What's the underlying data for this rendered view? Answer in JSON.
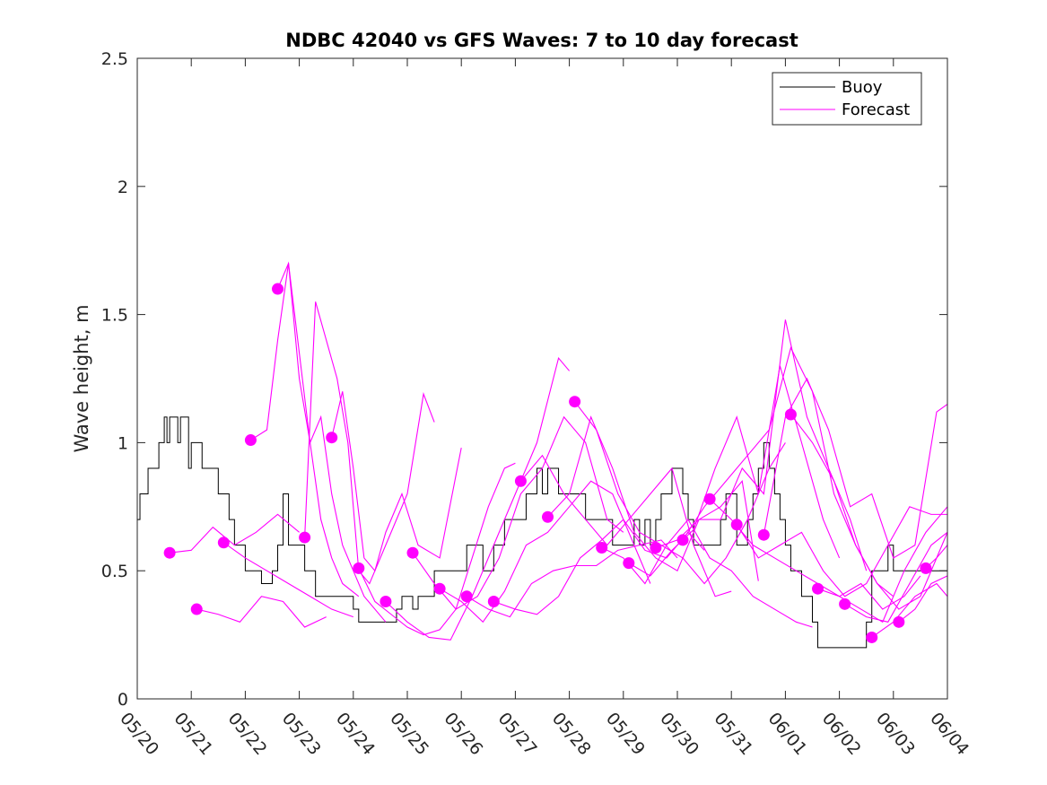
{
  "chart_data": {
    "type": "line",
    "title": "NDBC 42040 vs GFS Waves: 7 to 10 day forecast",
    "xlabel": "",
    "ylabel": "Wave height, m",
    "xlim": [
      0,
      15
    ],
    "ylim": [
      0,
      2.5
    ],
    "x_tick_labels": [
      "05/20",
      "05/21",
      "05/22",
      "05/23",
      "05/24",
      "05/25",
      "05/26",
      "05/27",
      "05/28",
      "05/29",
      "05/30",
      "05/31",
      "06/01",
      "06/02",
      "06/03",
      "06/04"
    ],
    "y_ticks": [
      0,
      0.5,
      1,
      1.5,
      2,
      2.5
    ],
    "y_tick_labels": [
      "0",
      "0.5",
      "1",
      "1.5",
      "2",
      "2.5"
    ],
    "legend": {
      "placement": "top-right",
      "entries": [
        {
          "label": "Buoy",
          "color": "#000000"
        },
        {
          "label": "Forecast",
          "color": "#ff00ff"
        }
      ]
    },
    "colors": {
      "buoy": "#000000",
      "forecast": "#ff00ff"
    },
    "series": [
      {
        "name": "Buoy",
        "x": [
          0,
          0.05,
          0.1,
          0.2,
          0.3,
          0.4,
          0.5,
          0.55,
          0.6,
          0.7,
          0.75,
          0.8,
          0.9,
          0.95,
          1.0,
          1.05,
          1.1,
          1.2,
          1.3,
          1.4,
          1.5,
          1.6,
          1.7,
          1.75,
          1.8,
          1.85,
          1.9,
          1.95,
          2.0,
          2.1,
          2.2,
          2.3,
          2.4,
          2.5,
          2.6,
          2.7,
          2.8,
          2.9,
          3.0,
          3.1,
          3.15,
          3.2,
          3.3,
          3.4,
          3.5,
          3.6,
          3.7,
          3.8,
          3.9,
          4.0,
          4.1,
          4.2,
          4.3,
          4.4,
          4.5,
          4.6,
          4.7,
          4.8,
          4.9,
          5.0,
          5.1,
          5.2,
          5.3,
          5.4,
          5.5,
          5.6,
          5.7,
          5.8,
          5.9,
          6.0,
          6.1,
          6.2,
          6.3,
          6.4,
          6.5,
          6.6,
          6.7,
          6.8,
          6.9,
          7.0,
          7.1,
          7.2,
          7.3,
          7.4,
          7.5,
          7.6,
          7.7,
          7.8,
          7.9,
          8.0,
          8.1,
          8.2,
          8.3,
          8.4,
          8.5,
          8.6,
          8.7,
          8.8,
          8.9,
          9.0,
          9.1,
          9.2,
          9.3,
          9.4,
          9.5,
          9.6,
          9.7,
          9.8,
          9.9,
          10.0,
          10.1,
          10.2,
          10.3,
          10.4,
          10.5,
          10.6,
          10.7,
          10.8,
          10.9,
          11.0,
          11.1,
          11.2,
          11.3,
          11.4,
          11.5,
          11.6,
          11.7,
          11.8,
          11.9,
          12.0,
          12.1,
          12.2,
          12.3,
          12.4,
          12.5,
          12.6,
          12.7,
          12.8,
          12.9,
          13.0,
          13.1,
          13.2,
          13.3,
          13.4,
          13.5,
          13.6,
          13.7,
          13.8,
          13.9,
          14.0,
          14.1,
          14.2,
          14.3,
          14.4,
          14.5,
          14.6,
          14.7,
          14.8,
          14.9,
          15.0
        ],
        "values": [
          0.7,
          0.8,
          0.8,
          0.9,
          0.9,
          1.0,
          1.1,
          1.0,
          1.1,
          1.1,
          1.0,
          1.1,
          1.1,
          0.9,
          1.0,
          1.0,
          1.0,
          0.9,
          0.9,
          0.9,
          0.8,
          0.8,
          0.7,
          0.7,
          0.6,
          0.6,
          0.6,
          0.6,
          0.5,
          0.5,
          0.5,
          0.45,
          0.45,
          0.5,
          0.6,
          0.8,
          0.6,
          0.6,
          0.6,
          0.5,
          0.5,
          0.5,
          0.4,
          0.4,
          0.4,
          0.4,
          0.4,
          0.4,
          0.4,
          0.35,
          0.3,
          0.3,
          0.3,
          0.3,
          0.3,
          0.3,
          0.3,
          0.35,
          0.4,
          0.4,
          0.35,
          0.4,
          0.4,
          0.4,
          0.5,
          0.5,
          0.5,
          0.5,
          0.5,
          0.5,
          0.6,
          0.6,
          0.6,
          0.5,
          0.5,
          0.6,
          0.6,
          0.7,
          0.7,
          0.7,
          0.7,
          0.8,
          0.8,
          0.9,
          0.8,
          0.9,
          0.9,
          0.8,
          0.8,
          0.8,
          0.8,
          0.8,
          0.7,
          0.7,
          0.7,
          0.7,
          0.7,
          0.6,
          0.6,
          0.6,
          0.6,
          0.7,
          0.6,
          0.7,
          0.6,
          0.7,
          0.8,
          0.8,
          0.9,
          0.9,
          0.8,
          0.7,
          0.6,
          0.6,
          0.6,
          0.6,
          0.6,
          0.7,
          0.8,
          0.8,
          0.6,
          0.6,
          0.7,
          0.8,
          0.9,
          1.0,
          0.9,
          0.8,
          0.7,
          0.6,
          0.5,
          0.5,
          0.4,
          0.4,
          0.3,
          0.2,
          0.2,
          0.2,
          0.2,
          0.2,
          0.2,
          0.2,
          0.2,
          0.2,
          0.3,
          0.5,
          0.5,
          0.5,
          0.6,
          0.5,
          0.5,
          0.5,
          0.5,
          0.5,
          0.5,
          0.5,
          0.5,
          0.5,
          0.5,
          0.5
        ]
      },
      {
        "name": "Forecast",
        "x": [
          0.6,
          1.0,
          1.4,
          1.8,
          2.2,
          2.6,
          3.0
        ],
        "values": [
          0.57,
          0.58,
          0.67,
          0.6,
          0.65,
          0.72,
          0.65
        ]
      },
      {
        "name": "Forecast",
        "x": [
          1.1,
          1.5,
          1.9,
          2.3,
          2.7,
          3.1,
          3.5
        ],
        "values": [
          0.35,
          0.33,
          0.3,
          0.4,
          0.38,
          0.28,
          0.32
        ]
      },
      {
        "name": "Forecast",
        "x": [
          1.6,
          2.0,
          2.4,
          2.8,
          3.2,
          3.6,
          4.0
        ],
        "values": [
          0.61,
          0.55,
          0.5,
          0.45,
          0.4,
          0.35,
          0.32
        ]
      },
      {
        "name": "Forecast",
        "x": [
          2.1,
          2.4,
          2.6,
          2.8,
          3.0,
          3.2,
          3.4,
          3.6,
          3.8,
          4.1
        ],
        "values": [
          1.01,
          1.05,
          1.4,
          1.7,
          1.25,
          1.0,
          0.7,
          0.55,
          0.45,
          0.4
        ]
      },
      {
        "name": "Forecast",
        "x": [
          2.6,
          2.8,
          3.0,
          3.2,
          3.4,
          3.6,
          3.8,
          4.0,
          4.2,
          4.6
        ],
        "values": [
          1.6,
          1.7,
          1.35,
          1.0,
          1.1,
          0.8,
          0.6,
          0.5,
          0.4,
          0.3
        ]
      },
      {
        "name": "Forecast",
        "x": [
          3.1,
          3.3,
          3.5,
          3.7,
          3.9,
          4.1,
          4.3,
          4.6,
          5.0,
          5.3,
          5.5
        ],
        "values": [
          0.63,
          1.55,
          1.4,
          1.25,
          1.0,
          0.5,
          0.45,
          0.6,
          0.8,
          1.19,
          1.08
        ]
      },
      {
        "name": "Forecast",
        "x": [
          3.6,
          3.8,
          4.0,
          4.2,
          4.4,
          4.6,
          4.9,
          5.2,
          5.6,
          6.0
        ],
        "values": [
          1.02,
          1.2,
          0.9,
          0.55,
          0.5,
          0.65,
          0.8,
          0.6,
          0.55,
          0.98
        ]
      },
      {
        "name": "Forecast",
        "x": [
          4.1,
          4.4,
          4.7,
          5.0,
          5.3,
          5.6,
          5.9,
          6.2,
          6.5,
          6.8,
          7.0
        ],
        "values": [
          0.51,
          0.38,
          0.33,
          0.28,
          0.25,
          0.27,
          0.35,
          0.55,
          0.75,
          0.9,
          0.92
        ]
      },
      {
        "name": "Forecast",
        "x": [
          4.6,
          5.0,
          5.4,
          5.8,
          6.2,
          6.6,
          7.0,
          7.4,
          7.8,
          8.0
        ],
        "values": [
          0.38,
          0.3,
          0.24,
          0.23,
          0.4,
          0.6,
          0.8,
          1.0,
          1.33,
          1.28
        ]
      },
      {
        "name": "Forecast",
        "x": [
          5.1,
          5.5,
          5.9,
          6.3,
          6.7,
          7.1,
          7.5,
          7.9,
          8.3,
          8.7,
          9.0
        ],
        "values": [
          0.57,
          0.45,
          0.35,
          0.4,
          0.55,
          0.8,
          0.9,
          1.1,
          1.0,
          0.7,
          0.65
        ]
      },
      {
        "name": "Forecast",
        "x": [
          5.6,
          6.0,
          6.4,
          6.8,
          7.2,
          7.6,
          8.0,
          8.4,
          8.8,
          9.2,
          9.5
        ],
        "values": [
          0.43,
          0.38,
          0.3,
          0.42,
          0.6,
          0.65,
          0.75,
          0.85,
          0.8,
          0.6,
          0.45
        ]
      },
      {
        "name": "Forecast",
        "x": [
          6.1,
          6.5,
          6.9,
          7.3,
          7.7,
          8.1,
          8.5,
          8.9,
          9.3,
          9.7,
          10.0
        ],
        "values": [
          0.4,
          0.35,
          0.32,
          0.45,
          0.5,
          0.52,
          0.52,
          0.58,
          0.6,
          0.62,
          0.55
        ]
      },
      {
        "name": "Forecast",
        "x": [
          6.6,
          7.0,
          7.4,
          7.8,
          8.2,
          8.6,
          9.0,
          9.4,
          9.8,
          10.2,
          10.5
        ],
        "values": [
          0.38,
          0.35,
          0.33,
          0.4,
          0.55,
          0.62,
          0.7,
          0.58,
          0.55,
          0.65,
          0.58
        ]
      },
      {
        "name": "Forecast",
        "x": [
          7.1,
          7.5,
          7.9,
          8.3,
          8.7,
          9.1,
          9.5,
          9.9,
          10.3,
          10.7,
          11.0
        ],
        "values": [
          0.85,
          0.95,
          0.8,
          0.7,
          0.6,
          0.7,
          0.8,
          0.9,
          0.6,
          0.4,
          0.42
        ]
      },
      {
        "name": "Forecast",
        "x": [
          7.6,
          8.0,
          8.4,
          8.8,
          9.2,
          9.6,
          10.0,
          10.4,
          10.8,
          11.2,
          11.5
        ],
        "values": [
          0.71,
          0.8,
          1.1,
          0.9,
          0.65,
          0.55,
          0.5,
          0.7,
          0.75,
          0.85,
          0.46
        ]
      },
      {
        "name": "Forecast",
        "x": [
          8.1,
          8.5,
          8.9,
          9.3,
          9.7,
          10.1,
          10.5,
          10.9,
          11.3,
          11.7,
          12.0
        ],
        "values": [
          1.16,
          1.05,
          0.8,
          0.65,
          0.6,
          0.55,
          0.45,
          0.55,
          0.7,
          0.9,
          1.0
        ]
      },
      {
        "name": "Forecast",
        "x": [
          8.6,
          9.0,
          9.4,
          9.8,
          10.2,
          10.6,
          11.0,
          11.4,
          11.8,
          12.2,
          12.5
        ],
        "values": [
          0.59,
          0.55,
          0.45,
          0.6,
          0.7,
          0.55,
          0.5,
          0.4,
          0.35,
          0.3,
          0.28
        ]
      },
      {
        "name": "Forecast",
        "x": [
          9.1,
          9.5,
          9.9,
          10.3,
          10.7,
          11.1,
          11.5,
          11.9,
          12.3,
          12.7,
          13.0
        ],
        "values": [
          0.53,
          0.48,
          0.58,
          0.66,
          0.9,
          1.1,
          0.8,
          1.3,
          1.0,
          0.7,
          0.55
        ]
      },
      {
        "name": "Forecast",
        "x": [
          9.6,
          10.0,
          10.4,
          10.8,
          11.2,
          11.6,
          12.0,
          12.4,
          12.8,
          13.2,
          13.5
        ],
        "values": [
          0.59,
          0.62,
          0.7,
          0.7,
          0.9,
          0.8,
          1.48,
          1.1,
          0.9,
          0.7,
          0.5
        ]
      },
      {
        "name": "Forecast",
        "x": [
          10.1,
          10.5,
          10.9,
          11.3,
          11.7,
          12.1,
          12.5,
          12.9,
          13.3,
          13.7,
          14.0
        ],
        "values": [
          0.62,
          0.75,
          0.85,
          0.95,
          1.05,
          1.37,
          1.2,
          0.8,
          0.6,
          0.45,
          0.4
        ]
      },
      {
        "name": "Forecast",
        "x": [
          10.6,
          11.0,
          11.4,
          11.8,
          12.2,
          12.6,
          13.0,
          13.4,
          13.8,
          14.2,
          14.5
        ],
        "values": [
          0.78,
          0.7,
          0.6,
          0.55,
          0.5,
          0.45,
          0.4,
          0.45,
          0.35,
          0.4,
          0.48
        ]
      },
      {
        "name": "Forecast",
        "x": [
          11.1,
          11.5,
          11.9,
          12.3,
          12.7,
          13.1,
          13.5,
          13.9,
          14.3,
          14.7,
          15.0
        ],
        "values": [
          0.68,
          0.55,
          0.6,
          0.65,
          0.5,
          0.4,
          0.45,
          0.6,
          0.75,
          0.72,
          0.72
        ]
      },
      {
        "name": "Forecast",
        "x": [
          11.6,
          12.0,
          12.4,
          12.8,
          13.2,
          13.6,
          14.0,
          14.4,
          14.8,
          15.0
        ],
        "values": [
          0.64,
          1.1,
          1.25,
          1.05,
          0.75,
          0.8,
          0.55,
          0.6,
          1.12,
          1.15
        ]
      },
      {
        "name": "Forecast",
        "x": [
          12.1,
          12.5,
          12.9,
          13.3,
          13.7,
          14.1,
          14.5,
          14.9,
          15.0
        ],
        "values": [
          1.11,
          1.0,
          0.85,
          0.6,
          0.45,
          0.35,
          0.4,
          0.6,
          0.65
        ]
      },
      {
        "name": "Forecast",
        "x": [
          12.6,
          13.0,
          13.4,
          13.8,
          14.2,
          14.6,
          15.0
        ],
        "values": [
          0.43,
          0.4,
          0.35,
          0.3,
          0.5,
          0.65,
          0.75
        ]
      },
      {
        "name": "Forecast",
        "x": [
          13.1,
          13.5,
          13.9,
          14.3,
          14.7,
          15.0
        ],
        "values": [
          0.37,
          0.32,
          0.3,
          0.45,
          0.6,
          0.65
        ]
      },
      {
        "name": "Forecast",
        "x": [
          13.6,
          14.0,
          14.4,
          14.8,
          15.0
        ],
        "values": [
          0.24,
          0.3,
          0.4,
          0.45,
          0.4
        ]
      },
      {
        "name": "Forecast",
        "x": [
          14.1,
          14.4,
          14.7,
          15.0
        ],
        "values": [
          0.3,
          0.35,
          0.45,
          0.48
        ]
      },
      {
        "name": "Forecast",
        "x": [
          14.6,
          14.8,
          15.0
        ],
        "values": [
          0.51,
          0.55,
          0.6
        ]
      }
    ]
  }
}
